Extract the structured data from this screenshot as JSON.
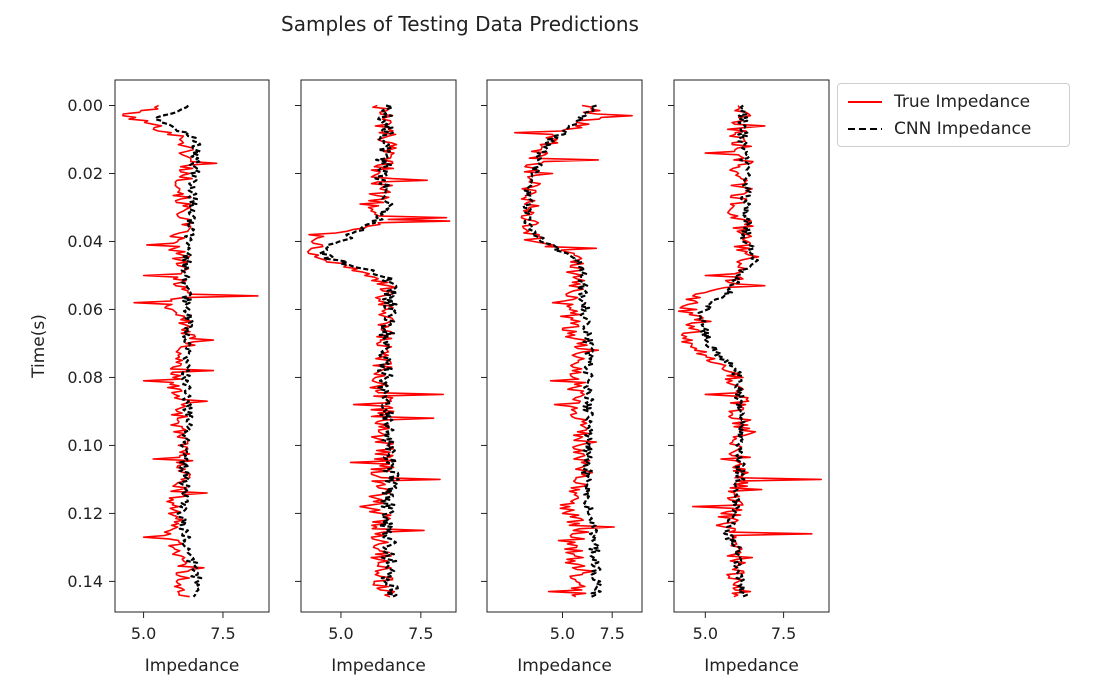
{
  "chart_data": {
    "type": "line",
    "title": "Samples of Testing Data Predictions",
    "ylabel": "Time(s)",
    "xlabel": "Impedance",
    "ylim": [
      0.149,
      -0.0075
    ],
    "yticks": [
      0.0,
      0.02,
      0.04,
      0.06,
      0.08,
      0.1,
      0.12,
      0.14
    ],
    "ytick_labels": [
      "0.00",
      "0.02",
      "0.04",
      "0.06",
      "0.08",
      "0.10",
      "0.12",
      "0.14"
    ],
    "xticks": [
      5.0,
      7.5
    ],
    "xtick_labels": [
      "5.0",
      "7.5"
    ],
    "legend_position": "outside-top-right",
    "legend": [
      {
        "name": "True Impedance",
        "color": "#ff0000",
        "style": "solid"
      },
      {
        "name": "CNN Impedance",
        "color": "#000000",
        "style": "dashed"
      }
    ],
    "panels": [
      {
        "xlim": [
          4.1,
          8.95
        ],
        "true_knots": [
          [
            0.0,
            5.6
          ],
          [
            0.003,
            4.35
          ],
          [
            0.005,
            5.1
          ],
          [
            0.01,
            6.3
          ],
          [
            0.017,
            6.4
          ],
          [
            0.025,
            6.2
          ],
          [
            0.035,
            6.3
          ],
          [
            0.041,
            5.9
          ],
          [
            0.045,
            6.2
          ],
          [
            0.05,
            6.1
          ],
          [
            0.056,
            6.4
          ],
          [
            0.058,
            5.7
          ],
          [
            0.063,
            6.3
          ],
          [
            0.07,
            6.4
          ],
          [
            0.075,
            6.1
          ],
          [
            0.081,
            5.9
          ],
          [
            0.088,
            6.2
          ],
          [
            0.095,
            6.1
          ],
          [
            0.103,
            6.3
          ],
          [
            0.11,
            6.3
          ],
          [
            0.115,
            6.0
          ],
          [
            0.12,
            6.0
          ],
          [
            0.127,
            5.9
          ],
          [
            0.133,
            6.2
          ],
          [
            0.14,
            6.2
          ],
          [
            0.145,
            6.3
          ]
        ],
        "true_spikes": [
          [
            0.003,
            4.35
          ],
          [
            0.017,
            7.3
          ],
          [
            0.041,
            5.1
          ],
          [
            0.05,
            5.0
          ],
          [
            0.056,
            8.6
          ],
          [
            0.058,
            4.7
          ],
          [
            0.069,
            7.2
          ],
          [
            0.078,
            7.2
          ],
          [
            0.081,
            5.0
          ],
          [
            0.087,
            7.0
          ],
          [
            0.104,
            5.3
          ],
          [
            0.114,
            7.0
          ],
          [
            0.127,
            5.0
          ],
          [
            0.136,
            6.9
          ]
        ],
        "true_noise": 0.28,
        "cnn_knots": [
          [
            0.0,
            6.4
          ],
          [
            0.004,
            5.4
          ],
          [
            0.01,
            6.7
          ],
          [
            0.02,
            6.6
          ],
          [
            0.03,
            6.5
          ],
          [
            0.04,
            6.4
          ],
          [
            0.05,
            6.3
          ],
          [
            0.06,
            6.4
          ],
          [
            0.07,
            6.4
          ],
          [
            0.08,
            6.3
          ],
          [
            0.09,
            6.4
          ],
          [
            0.1,
            6.3
          ],
          [
            0.11,
            6.3
          ],
          [
            0.12,
            6.2
          ],
          [
            0.13,
            6.4
          ],
          [
            0.14,
            6.7
          ],
          [
            0.145,
            6.7
          ]
        ],
        "cnn_noise": 0.16
      },
      {
        "xlim": [
          3.75,
          8.6
        ],
        "true_knots": [
          [
            0.0,
            6.3
          ],
          [
            0.01,
            6.4
          ],
          [
            0.02,
            6.3
          ],
          [
            0.03,
            6.2
          ],
          [
            0.034,
            6.5
          ],
          [
            0.038,
            4.6
          ],
          [
            0.042,
            4.2
          ],
          [
            0.045,
            4.5
          ],
          [
            0.048,
            5.4
          ],
          [
            0.052,
            6.4
          ],
          [
            0.06,
            6.3
          ],
          [
            0.07,
            6.3
          ],
          [
            0.08,
            6.2
          ],
          [
            0.09,
            6.3
          ],
          [
            0.1,
            6.3
          ],
          [
            0.11,
            6.3
          ],
          [
            0.12,
            6.2
          ],
          [
            0.13,
            6.3
          ],
          [
            0.14,
            6.3
          ],
          [
            0.145,
            6.5
          ]
        ],
        "true_spikes": [
          [
            0.022,
            7.7
          ],
          [
            0.029,
            5.6
          ],
          [
            0.033,
            8.3
          ],
          [
            0.034,
            8.4
          ],
          [
            0.038,
            4.0
          ],
          [
            0.085,
            8.2
          ],
          [
            0.088,
            5.4
          ],
          [
            0.092,
            7.9
          ],
          [
            0.105,
            5.3
          ],
          [
            0.11,
            8.1
          ],
          [
            0.118,
            5.6
          ],
          [
            0.125,
            7.6
          ]
        ],
        "true_noise": 0.36,
        "cnn_knots": [
          [
            0.0,
            6.4
          ],
          [
            0.01,
            6.4
          ],
          [
            0.02,
            6.3
          ],
          [
            0.03,
            6.4
          ],
          [
            0.035,
            6.0
          ],
          [
            0.04,
            5.0
          ],
          [
            0.042,
            4.4
          ],
          [
            0.045,
            4.6
          ],
          [
            0.048,
            5.8
          ],
          [
            0.052,
            6.6
          ],
          [
            0.06,
            6.5
          ],
          [
            0.07,
            6.4
          ],
          [
            0.08,
            6.4
          ],
          [
            0.09,
            6.4
          ],
          [
            0.1,
            6.5
          ],
          [
            0.11,
            6.6
          ],
          [
            0.12,
            6.4
          ],
          [
            0.13,
            6.5
          ],
          [
            0.14,
            6.5
          ],
          [
            0.145,
            6.6
          ]
        ],
        "cnn_noise": 0.24
      },
      {
        "xlim": [
          1.2,
          9.0
        ],
        "true_knots": [
          [
            0.0,
            6.2
          ],
          [
            0.003,
            6.7
          ],
          [
            0.008,
            5.0
          ],
          [
            0.012,
            4.0
          ],
          [
            0.018,
            3.5
          ],
          [
            0.025,
            3.4
          ],
          [
            0.03,
            3.4
          ],
          [
            0.035,
            3.3
          ],
          [
            0.04,
            3.6
          ],
          [
            0.042,
            4.8
          ],
          [
            0.045,
            5.6
          ],
          [
            0.05,
            5.6
          ],
          [
            0.055,
            5.6
          ],
          [
            0.06,
            5.4
          ],
          [
            0.065,
            5.4
          ],
          [
            0.07,
            5.8
          ],
          [
            0.075,
            6.0
          ],
          [
            0.08,
            5.7
          ],
          [
            0.085,
            5.8
          ],
          [
            0.09,
            5.9
          ],
          [
            0.095,
            5.9
          ],
          [
            0.1,
            5.9
          ],
          [
            0.11,
            5.9
          ],
          [
            0.118,
            5.3
          ],
          [
            0.125,
            5.9
          ],
          [
            0.13,
            5.6
          ],
          [
            0.14,
            5.7
          ],
          [
            0.145,
            5.9
          ]
        ],
        "true_spikes": [
          [
            0.003,
            8.5
          ],
          [
            0.008,
            2.6
          ],
          [
            0.016,
            6.8
          ],
          [
            0.02,
            4.5
          ],
          [
            0.042,
            6.7
          ],
          [
            0.058,
            4.5
          ],
          [
            0.066,
            5.0
          ],
          [
            0.072,
            6.8
          ],
          [
            0.081,
            4.4
          ],
          [
            0.088,
            4.6
          ],
          [
            0.099,
            6.7
          ],
          [
            0.108,
            6.5
          ],
          [
            0.124,
            7.6
          ],
          [
            0.128,
            4.8
          ],
          [
            0.137,
            6.6
          ],
          [
            0.143,
            4.3
          ]
        ],
        "true_noise": 0.5,
        "cnn_knots": [
          [
            0.0,
            6.7
          ],
          [
            0.005,
            5.8
          ],
          [
            0.01,
            4.5
          ],
          [
            0.015,
            3.8
          ],
          [
            0.02,
            3.6
          ],
          [
            0.025,
            3.3
          ],
          [
            0.03,
            3.2
          ],
          [
            0.035,
            3.2
          ],
          [
            0.04,
            4.0
          ],
          [
            0.043,
            5.0
          ],
          [
            0.046,
            5.8
          ],
          [
            0.05,
            6.0
          ],
          [
            0.055,
            6.0
          ],
          [
            0.06,
            6.1
          ],
          [
            0.065,
            6.2
          ],
          [
            0.07,
            6.3
          ],
          [
            0.075,
            6.4
          ],
          [
            0.08,
            6.3
          ],
          [
            0.09,
            6.3
          ],
          [
            0.1,
            6.3
          ],
          [
            0.11,
            6.2
          ],
          [
            0.12,
            6.4
          ],
          [
            0.13,
            6.6
          ],
          [
            0.14,
            6.7
          ],
          [
            0.145,
            6.7
          ]
        ],
        "cnn_noise": 0.25
      },
      {
        "xlim": [
          4.0,
          8.95
        ],
        "true_knots": [
          [
            0.0,
            6.2
          ],
          [
            0.005,
            6.1
          ],
          [
            0.01,
            6.0
          ],
          [
            0.015,
            6.3
          ],
          [
            0.02,
            6.0
          ],
          [
            0.025,
            6.2
          ],
          [
            0.03,
            6.0
          ],
          [
            0.035,
            6.2
          ],
          [
            0.04,
            6.1
          ],
          [
            0.045,
            6.4
          ],
          [
            0.05,
            6.0
          ],
          [
            0.053,
            5.7
          ],
          [
            0.056,
            4.6
          ],
          [
            0.06,
            4.4
          ],
          [
            0.063,
            4.9
          ],
          [
            0.066,
            4.5
          ],
          [
            0.07,
            4.6
          ],
          [
            0.074,
            4.9
          ],
          [
            0.076,
            5.7
          ],
          [
            0.08,
            5.9
          ],
          [
            0.085,
            6.0
          ],
          [
            0.09,
            6.1
          ],
          [
            0.1,
            6.1
          ],
          [
            0.105,
            6.1
          ],
          [
            0.11,
            6.2
          ],
          [
            0.115,
            6.0
          ],
          [
            0.12,
            5.8
          ],
          [
            0.126,
            5.6
          ],
          [
            0.13,
            5.9
          ],
          [
            0.14,
            6.0
          ],
          [
            0.145,
            6.2
          ]
        ],
        "true_spikes": [
          [
            0.006,
            6.9
          ],
          [
            0.014,
            5.0
          ],
          [
            0.044,
            6.4
          ],
          [
            0.05,
            5.0
          ],
          [
            0.053,
            6.9
          ],
          [
            0.056,
            4.6
          ],
          [
            0.068,
            4.4
          ],
          [
            0.085,
            5.0
          ],
          [
            0.096,
            6.6
          ],
          [
            0.104,
            5.5
          ],
          [
            0.11,
            8.7
          ],
          [
            0.113,
            6.8
          ],
          [
            0.118,
            4.6
          ],
          [
            0.126,
            8.4
          ],
          [
            0.133,
            6.5
          ]
        ],
        "true_noise": 0.35,
        "cnn_knots": [
          [
            0.0,
            6.2
          ],
          [
            0.01,
            6.2
          ],
          [
            0.02,
            6.3
          ],
          [
            0.03,
            6.3
          ],
          [
            0.04,
            6.3
          ],
          [
            0.045,
            6.6
          ],
          [
            0.05,
            6.1
          ],
          [
            0.055,
            5.7
          ],
          [
            0.058,
            5.3
          ],
          [
            0.062,
            4.8
          ],
          [
            0.066,
            5.0
          ],
          [
            0.07,
            5.1
          ],
          [
            0.074,
            5.5
          ],
          [
            0.078,
            6.0
          ],
          [
            0.085,
            6.1
          ],
          [
            0.09,
            6.1
          ],
          [
            0.1,
            6.1
          ],
          [
            0.11,
            6.1
          ],
          [
            0.12,
            5.9
          ],
          [
            0.126,
            5.7
          ],
          [
            0.13,
            6.0
          ],
          [
            0.14,
            6.1
          ],
          [
            0.145,
            6.2
          ]
        ],
        "cnn_noise": 0.16
      }
    ]
  }
}
